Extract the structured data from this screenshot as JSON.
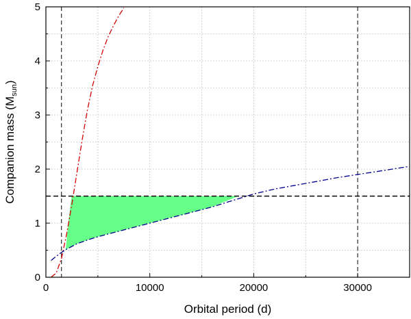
{
  "chart_data": {
    "type": "line",
    "xlabel": "Orbital period (d)",
    "ylabel_main": "Companion mass (M",
    "ylabel_sub": "sun",
    "ylabel_end": ")",
    "xlim": [
      0,
      35000
    ],
    "ylim": [
      0,
      5
    ],
    "x_ticks": [
      0,
      10000,
      20000,
      30000
    ],
    "y_ticks": [
      0,
      1,
      2,
      3,
      4,
      5
    ],
    "grid": true,
    "series": [
      {
        "color": "#d40000",
        "style": "dash-dot",
        "x": [
          500,
          1000,
          1500,
          2000,
          2500,
          3000,
          3500,
          4000,
          4500,
          5000,
          5500,
          6000,
          6500,
          7000,
          7500
        ],
        "y": [
          0.0,
          0.08,
          0.35,
          0.8,
          1.35,
          1.95,
          2.55,
          3.1,
          3.55,
          3.9,
          4.2,
          4.45,
          4.65,
          4.83,
          4.98
        ]
      },
      {
        "color": "#00008b",
        "style": "dash-dot",
        "x": [
          500,
          1000,
          1500,
          2000,
          2500,
          3000,
          4000,
          5000,
          6000,
          8000,
          10000,
          12000,
          14000,
          16000,
          18000,
          19000,
          20000,
          22000,
          24000,
          26000,
          28000,
          30000,
          32000,
          34000,
          35000
        ],
        "y": [
          0.31,
          0.39,
          0.46,
          0.52,
          0.57,
          0.62,
          0.69,
          0.75,
          0.8,
          0.9,
          1.0,
          1.1,
          1.2,
          1.3,
          1.42,
          1.48,
          1.54,
          1.63,
          1.7,
          1.77,
          1.84,
          1.9,
          1.96,
          2.02,
          2.05
        ]
      }
    ],
    "reference_lines": {
      "vertical": [
        1500,
        30000
      ],
      "horizontal": [
        1.5
      ]
    },
    "allowed_region": {
      "color": "#66ff88",
      "x": [
        2480,
        18500,
        16000,
        14000,
        12000,
        10000,
        8000,
        6000,
        5000,
        4000,
        3000,
        2000,
        1900,
        2150
      ],
      "y": [
        1.5,
        1.5,
        1.3,
        1.2,
        1.1,
        1.0,
        0.9,
        0.8,
        0.75,
        0.69,
        0.62,
        0.52,
        0.5,
        1.0
      ]
    }
  }
}
